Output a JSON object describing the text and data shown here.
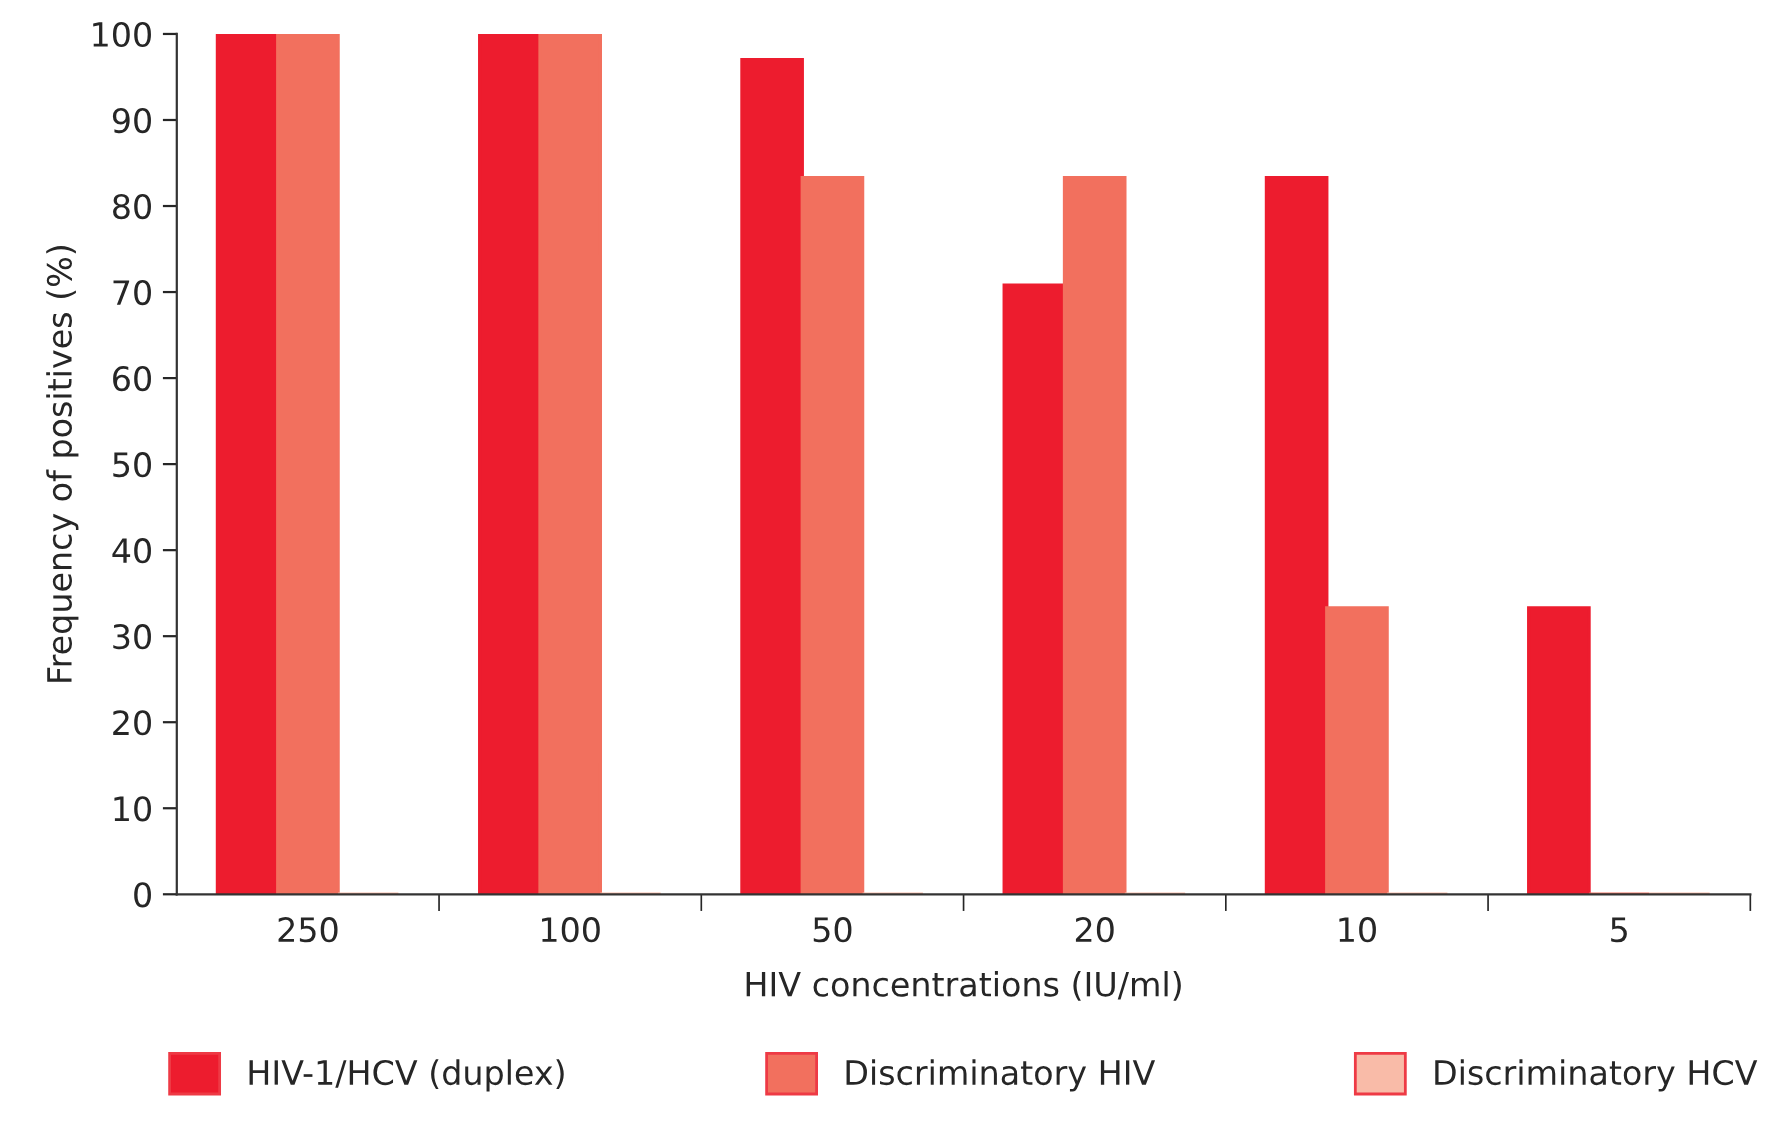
{
  "chart_data": {
    "type": "bar",
    "xlabel": "HIV concentrations (IU/ml)",
    "ylabel": "Frequency of positives (%)",
    "categories": [
      "250",
      "100",
      "50",
      "20",
      "10",
      "5"
    ],
    "series": [
      {
        "name": "HIV-1/HCV (duplex)",
        "color": "#ed1c2e",
        "values": [
          100,
          100,
          97,
          70.8,
          83.3,
          33.3
        ]
      },
      {
        "name": "Discriminatory HIV",
        "color": "#f2705e",
        "values": [
          100,
          100,
          83.3,
          83.3,
          33.3,
          0
        ]
      },
      {
        "name": "Discriminatory HCV",
        "color": "#f9bba8",
        "values": [
          0,
          0,
          0,
          0,
          0,
          0
        ]
      }
    ],
    "ylim": [
      0,
      100
    ],
    "yticks": [
      0,
      10,
      20,
      30,
      40,
      50,
      60,
      70,
      80,
      90,
      100
    ],
    "grid": false,
    "legend": "bottom"
  }
}
